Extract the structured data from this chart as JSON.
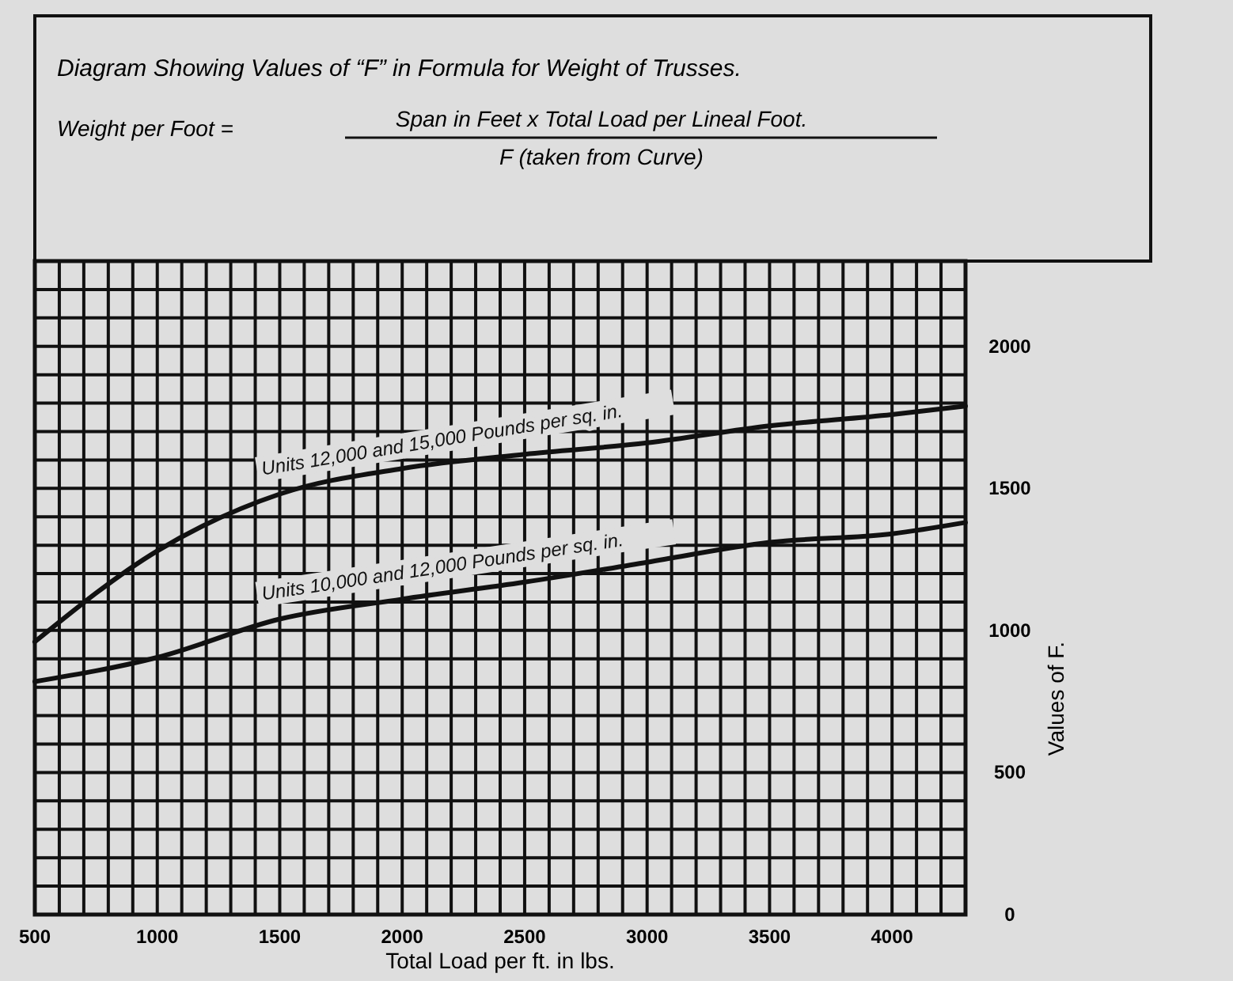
{
  "chart_data": {
    "type": "line",
    "title": "Diagram Showing Values of “F” in Formula for Weight of Trusses.",
    "annotations": [
      "Weight per Foot =",
      "Span in Feet x Total Load per Lineal Foot.",
      "F (taken from Curve)"
    ],
    "xlabel": "Total Load per ft. in lbs.",
    "ylabel": "Values of F.",
    "x": [
      500,
      1000,
      1500,
      2000,
      2500,
      3000,
      3500,
      4000,
      4300
    ],
    "series": [
      {
        "name": "Units 12,000 and 15,000 Pounds per sq. in.",
        "color": "#111111",
        "values": [
          960,
          1280,
          1480,
          1570,
          1620,
          1660,
          1720,
          1760,
          1790
        ]
      },
      {
        "name": "Units 10,000 and 12,000 Pounds per sq. in.",
        "color": "#111111",
        "values": [
          820,
          905,
          1040,
          1110,
          1170,
          1240,
          1310,
          1340,
          1380
        ]
      }
    ],
    "xlim": [
      500,
      4300
    ],
    "xticks": [
      500,
      {
        "value": 600,
        "label": null
      },
      {
        "value": 700,
        "label": null
      },
      {
        "value": 800,
        "label": null
      },
      {
        "value": 900,
        "label": null
      },
      1000,
      {
        "value": 1100,
        "label": null
      },
      {
        "value": 1200,
        "label": null
      },
      {
        "value": 1300,
        "label": null
      },
      {
        "value": 1400,
        "label": null
      },
      1500,
      {
        "value": 1600,
        "label": null
      },
      {
        "value": 1700,
        "label": null
      },
      {
        "value": 1800,
        "label": null
      },
      {
        "value": 1900,
        "label": null
      },
      2000,
      {
        "value": 2100,
        "label": null
      },
      {
        "value": 2200,
        "label": null
      },
      {
        "value": 2300,
        "label": null
      },
      {
        "value": 2400,
        "label": null
      },
      2500,
      {
        "value": 2600,
        "label": null
      },
      {
        "value": 2700,
        "label": null
      },
      {
        "value": 2800,
        "label": null
      },
      {
        "value": 2900,
        "label": null
      },
      3000,
      {
        "value": 3100,
        "label": null
      },
      {
        "value": 3200,
        "label": null
      },
      {
        "value": 3300,
        "label": null
      },
      {
        "value": 3400,
        "label": null
      },
      3500,
      {
        "value": 3600,
        "label": null
      },
      {
        "value": 3700,
        "label": null
      },
      {
        "value": 3800,
        "label": null
      },
      {
        "value": 3900,
        "label": null
      },
      4000,
      {
        "value": 4100,
        "label": null
      },
      {
        "value": 4200,
        "label": null
      },
      {
        "value": 4300,
        "label": null
      }
    ],
    "ylim": [
      0,
      2300
    ],
    "yticks": [
      0,
      {
        "value": 100,
        "label": null
      },
      {
        "value": 200,
        "label": null
      },
      {
        "value": 300,
        "label": null
      },
      {
        "value": 400,
        "label": null
      },
      500,
      {
        "value": 600,
        "label": null
      },
      {
        "value": 700,
        "label": null
      },
      {
        "value": 800,
        "label": null
      },
      {
        "value": 900,
        "label": null
      },
      1000,
      {
        "value": 1100,
        "label": null
      },
      {
        "value": 1200,
        "label": null
      },
      {
        "value": 1300,
        "label": null
      },
      {
        "value": 1400,
        "label": null
      },
      1500,
      {
        "value": 1600,
        "label": null
      },
      {
        "value": 1700,
        "label": null
      },
      {
        "value": 1800,
        "label": null
      },
      {
        "value": 1900,
        "label": null
      },
      2000,
      {
        "value": 2100,
        "label": null
      },
      {
        "value": 2200,
        "label": null
      },
      {
        "value": 2300,
        "label": null
      }
    ],
    "grid": true,
    "line_style": "solid"
  }
}
